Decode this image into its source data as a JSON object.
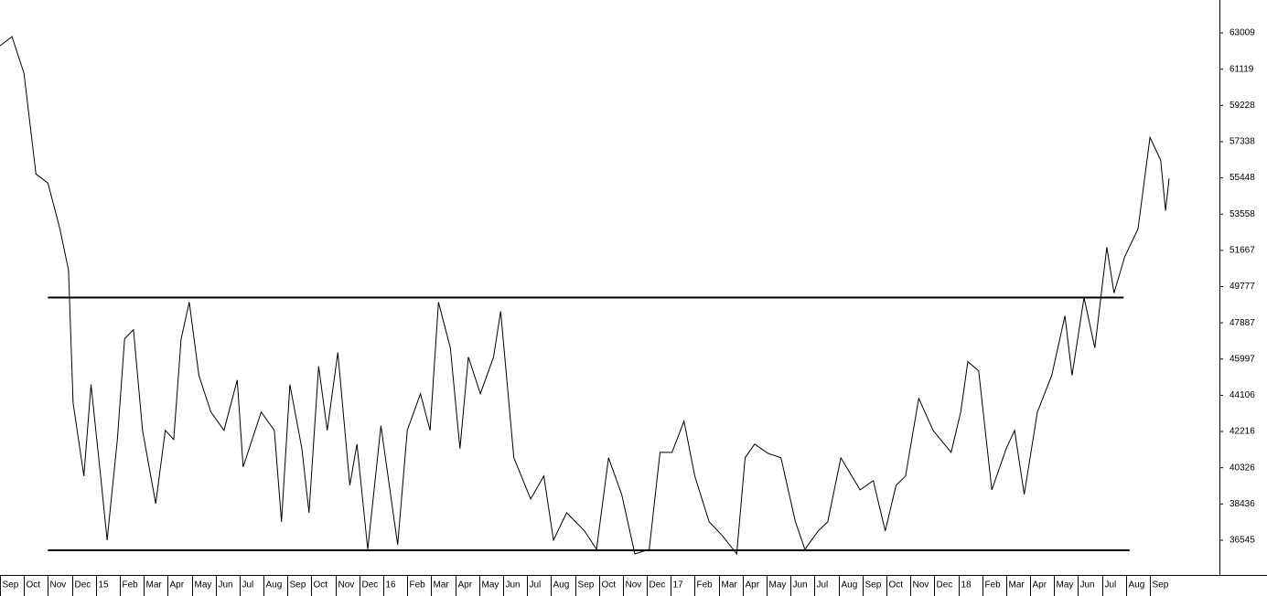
{
  "chart_data": {
    "type": "line",
    "x": [
      0,
      0.5,
      1,
      1.5,
      2,
      2.5,
      2.86,
      3.05,
      3.5,
      3.8,
      4.2,
      4.47,
      4.9,
      5.2,
      5.57,
      5.95,
      6.5,
      6.9,
      7.25,
      7.56,
      7.9,
      8.3,
      8.8,
      9.35,
      9.9,
      10.15,
      10.9,
      11.45,
      11.75,
      12.1,
      12.6,
      12.9,
      13.3,
      13.66,
      14.1,
      14.6,
      14.9,
      15.35,
      15.9,
      16.6,
      17,
      17.55,
      17.95,
      18.3,
      18.8,
      19.2,
      19.55,
      20.05,
      20.6,
      20.9,
      21.45,
      22.15,
      22.7,
      23.1,
      23.65,
      24.4,
      24.9,
      25.4,
      25.95,
      26.5,
      27.1,
      27.55,
      28.05,
      28.55,
      29,
      29.6,
      30.15,
      30.75,
      31.1,
      31.5,
      32.05,
      32.6,
      33.2,
      33.6,
      34.15,
      34.55,
      35.1,
      35.9,
      36.45,
      36.95,
      37.4,
      37.8,
      38.35,
      38.95,
      39.7,
      40.1,
      40.4,
      40.85,
      41.4,
      42,
      42.35,
      42.75,
      43.3,
      43.9,
      44.45,
      44.75,
      45.25,
      45.7,
      46.2,
      46.5,
      46.95,
      47.5,
      48,
      48.45,
      48.65,
      48.8
    ],
    "series": [
      {
        "color": "#000000",
        "values": [
          62340,
          62818,
          60907,
          55652,
          55175,
          52786,
          50636,
          43710,
          39889,
          44665,
          39889,
          36545,
          41800,
          47054,
          47532,
          42277,
          38455,
          42277,
          41800,
          47054,
          48965,
          45143,
          43232,
          42277,
          44904,
          40366,
          43232,
          42277,
          37501,
          44665,
          41322,
          37978,
          45621,
          42277,
          46338,
          39411,
          41561,
          36067,
          42516,
          36306,
          42277,
          44188,
          42277,
          48965,
          46577,
          41322,
          46099,
          44188,
          46099,
          48487,
          40844,
          38694,
          39889,
          36545,
          37978,
          37023,
          36067,
          40844,
          38933,
          35828,
          36067,
          41128,
          41128,
          42755,
          39889,
          37501,
          36784,
          35828,
          40844,
          41561,
          41083,
          40844,
          37501,
          36067,
          37023,
          37501,
          40844,
          39172,
          39650,
          37023,
          39411,
          39889,
          43949,
          42277,
          41128,
          43232,
          45860,
          45382,
          39172,
          41322,
          42277,
          38933,
          43232,
          45143,
          48248,
          45143,
          49205,
          46577,
          51831,
          49443,
          51353,
          52786,
          57563,
          56369,
          53742,
          55413
        ]
      }
    ],
    "hlines": [
      {
        "y": 49204,
        "x": [
          2.0,
          46.9
        ]
      },
      {
        "y": 36020,
        "x": [
          2.0,
          47.15
        ]
      }
    ],
    "xlim": [
      0,
      50.9
    ],
    "ylim": [
      34730,
      64729
    ],
    "yticks": [
      36545,
      38436,
      40326,
      42216,
      44106,
      45997,
      47887,
      49777,
      51667,
      53558,
      55448,
      57338,
      59228,
      61119,
      63009
    ],
    "xticks": [
      {
        "value": 0,
        "label": "Sep"
      },
      {
        "value": 1,
        "label": "Oct"
      },
      {
        "value": 2,
        "label": "Nov"
      },
      {
        "value": 3,
        "label": "Dec"
      },
      {
        "value": 4,
        "label": "15"
      },
      {
        "value": 5,
        "label": "Feb"
      },
      {
        "value": 6,
        "label": "Mar"
      },
      {
        "value": 7,
        "label": "Apr"
      },
      {
        "value": 8,
        "label": "May"
      },
      {
        "value": 9,
        "label": "Jun"
      },
      {
        "value": 10,
        "label": "Jul"
      },
      {
        "value": 11,
        "label": "Aug"
      },
      {
        "value": 12,
        "label": "Sep"
      },
      {
        "value": 13,
        "label": "Oct"
      },
      {
        "value": 14,
        "label": "Nov"
      },
      {
        "value": 15,
        "label": "Dec"
      },
      {
        "value": 16,
        "label": "16"
      },
      {
        "value": 17,
        "label": "Feb"
      },
      {
        "value": 18,
        "label": "Mar"
      },
      {
        "value": 19,
        "label": "Apr"
      },
      {
        "value": 20,
        "label": "May"
      },
      {
        "value": 21,
        "label": "Jun"
      },
      {
        "value": 22,
        "label": "Jul"
      },
      {
        "value": 23,
        "label": "Aug"
      },
      {
        "value": 24,
        "label": "Sep"
      },
      {
        "value": 25,
        "label": "Oct"
      },
      {
        "value": 26,
        "label": "Nov"
      },
      {
        "value": 27,
        "label": "Dec"
      },
      {
        "value": 28,
        "label": "17"
      },
      {
        "value": 29,
        "label": "Feb"
      },
      {
        "value": 30,
        "label": "Mar"
      },
      {
        "value": 31,
        "label": "Apr"
      },
      {
        "value": 32,
        "label": "May"
      },
      {
        "value": 33,
        "label": "Jun"
      },
      {
        "value": 34,
        "label": "Jul"
      },
      {
        "value": 35,
        "label": "Aug"
      },
      {
        "value": 36,
        "label": "Sep"
      },
      {
        "value": 37,
        "label": "Oct"
      },
      {
        "value": 38,
        "label": "Nov"
      },
      {
        "value": 39,
        "label": "Dec"
      },
      {
        "value": 40,
        "label": "18"
      },
      {
        "value": 41,
        "label": "Feb"
      },
      {
        "value": 42,
        "label": "Mar"
      },
      {
        "value": 43,
        "label": "Apr"
      },
      {
        "value": 44,
        "label": "May"
      },
      {
        "value": 45,
        "label": "Jun"
      },
      {
        "value": 46,
        "label": "Jul"
      },
      {
        "value": 47,
        "label": "Aug"
      },
      {
        "value": 48,
        "label": "Sep"
      }
    ]
  }
}
